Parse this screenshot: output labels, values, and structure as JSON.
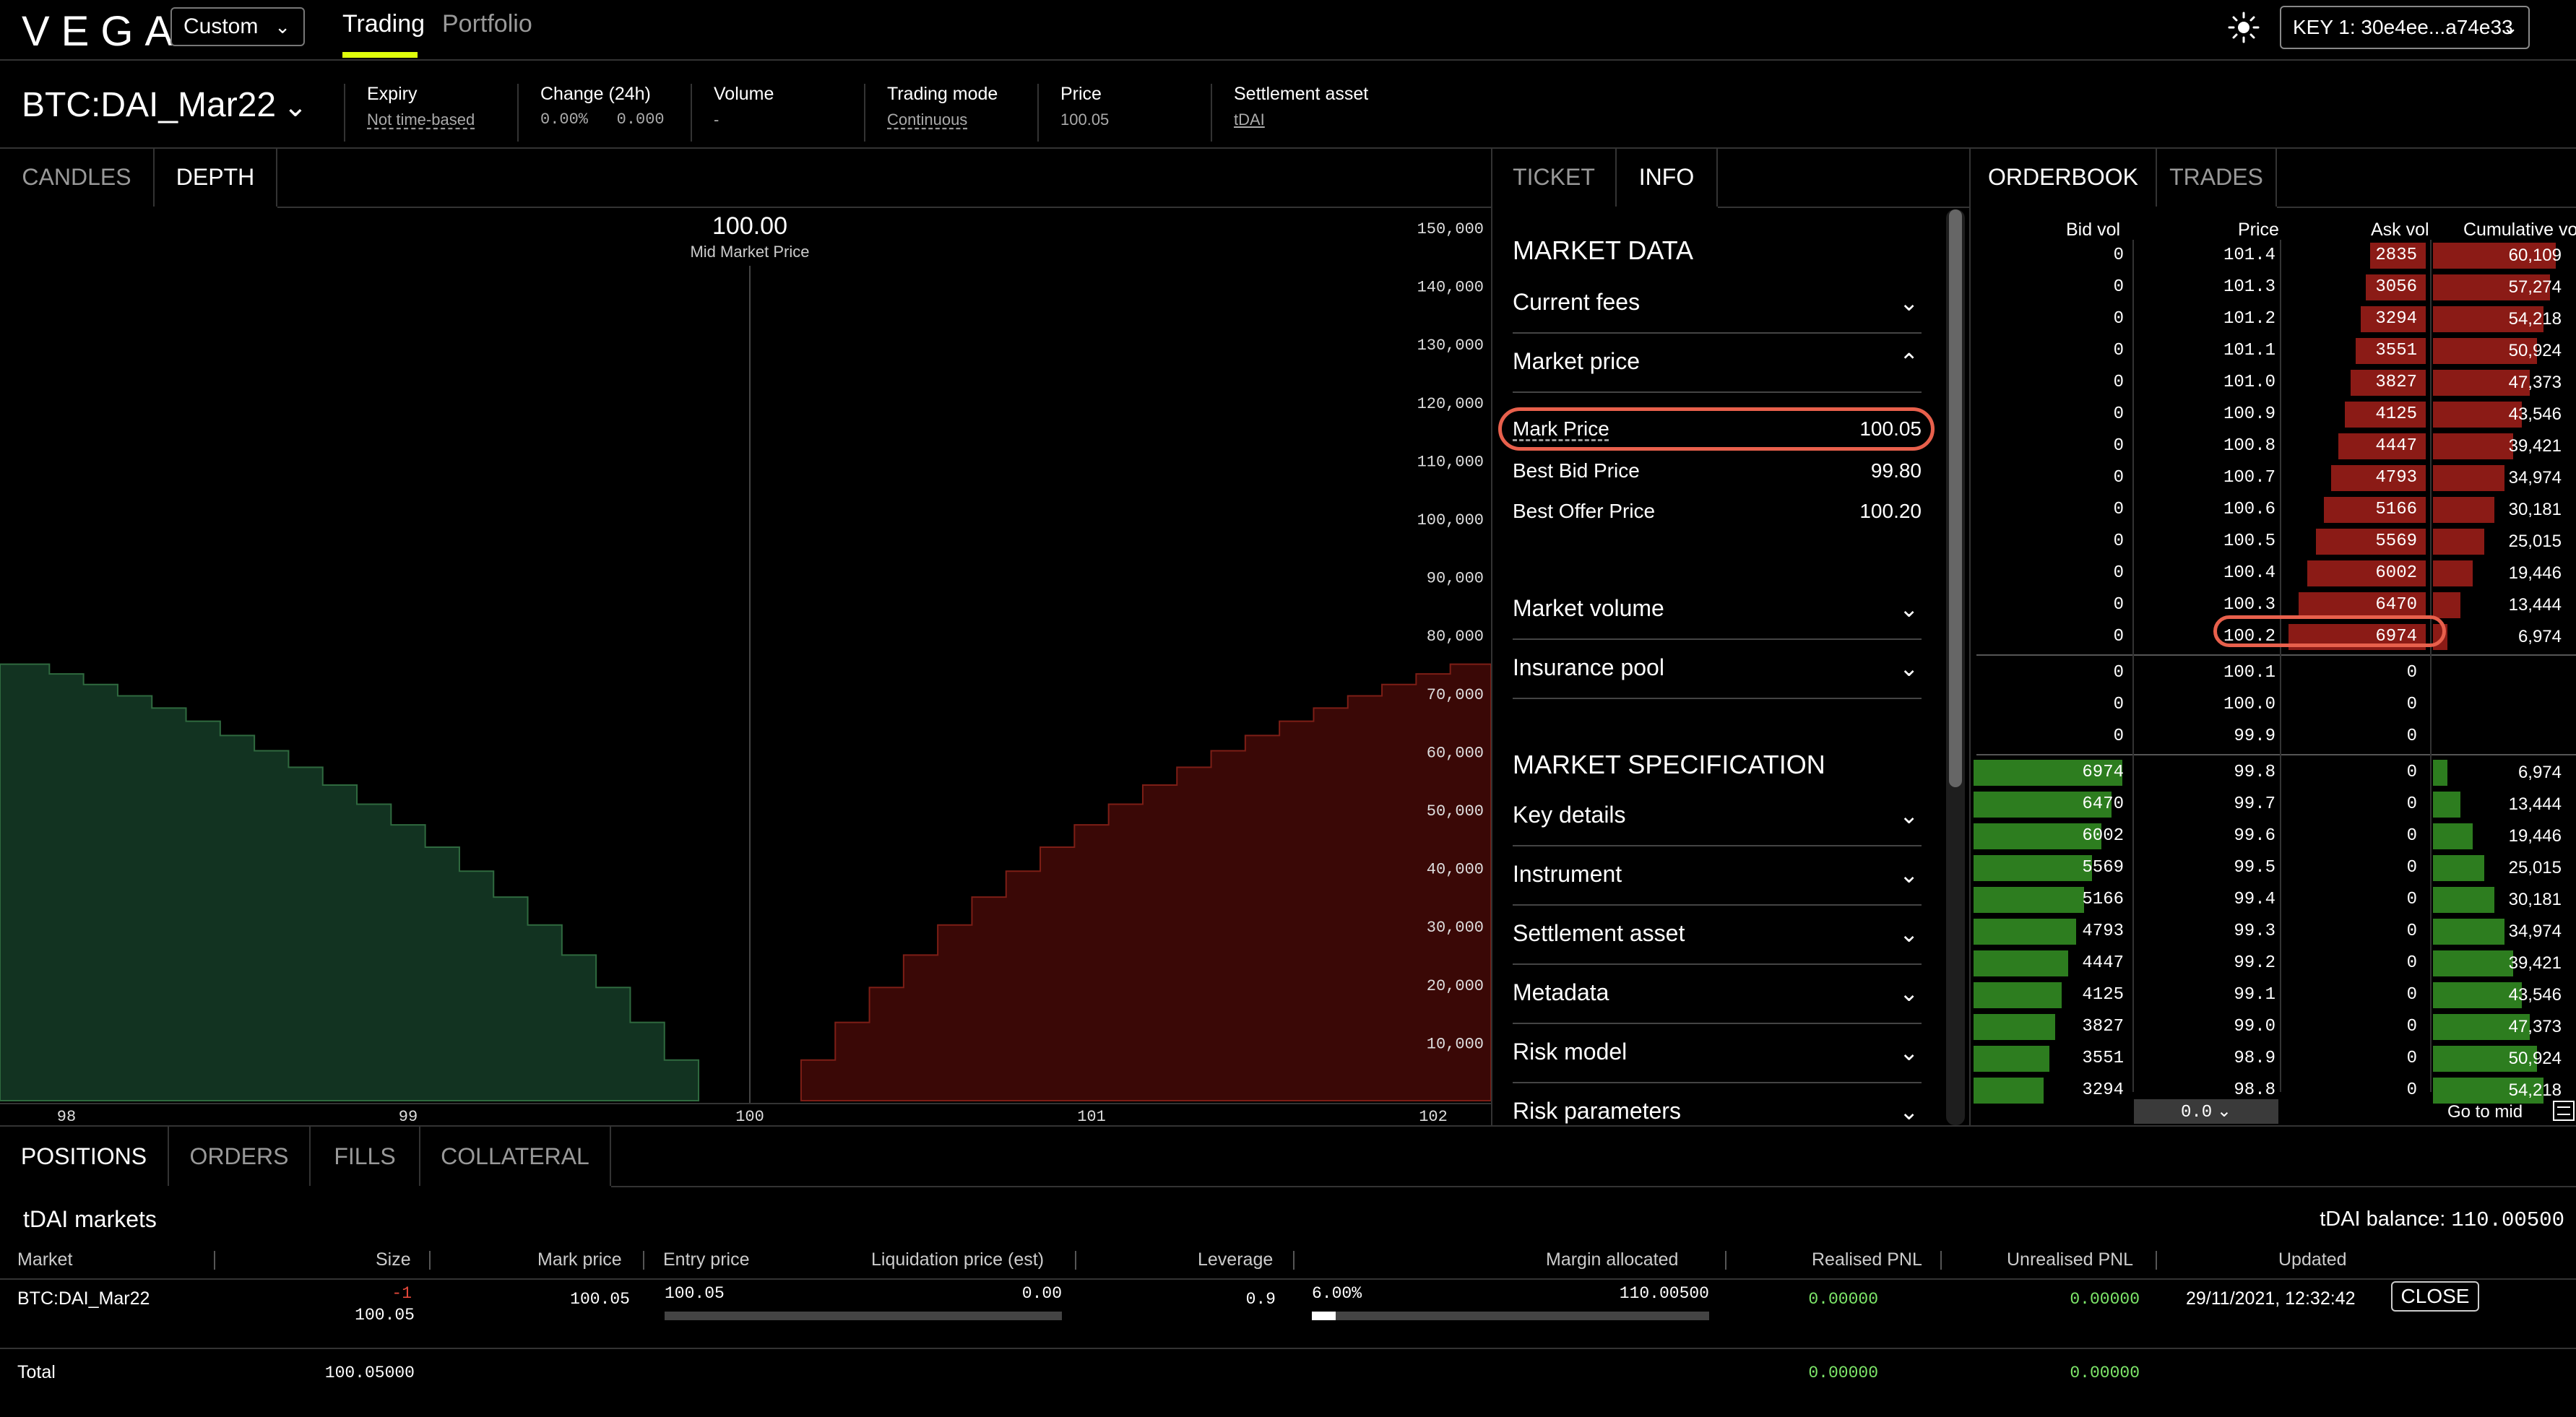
{
  "app": {
    "logo": "VEGA",
    "market_select": "Custom",
    "nav": [
      "Trading",
      "Portfolio"
    ],
    "key_label": "KEY 1: 30e4ee...a74e33",
    "accent_color": "#dfff0b"
  },
  "market_header": {
    "title": "BTC:DAI_Mar22",
    "stats": [
      {
        "label": "Expiry",
        "value": "Not time-based"
      },
      {
        "label": "Change (24h)",
        "value": "0.00%   0.000"
      },
      {
        "label": "Volume",
        "value": "-"
      },
      {
        "label": "Trading mode",
        "value": "Continuous"
      },
      {
        "label": "Price",
        "value": "100.05"
      },
      {
        "label": "Settlement asset",
        "value": "tDAI"
      }
    ]
  },
  "chart_panel": {
    "tabs": [
      "CANDLES",
      "DEPTH"
    ],
    "active_tab": "DEPTH"
  },
  "chart_data": {
    "type": "area",
    "mid_price": "100.00",
    "mid_label": "Mid Market Price",
    "x_ticks": [
      "98",
      "99",
      "100",
      "101",
      "102"
    ],
    "y_ticks": [
      "150,000",
      "140,000",
      "130,000",
      "120,000",
      "110,000",
      "100,000",
      "90,000",
      "80,000",
      "70,000",
      "60,000",
      "50,000",
      "40,000",
      "30,000",
      "20,000",
      "10,000"
    ],
    "xlim": [
      97.8,
      102.2
    ],
    "ylim": [
      0,
      150000
    ],
    "bids": [
      {
        "price": 99.8,
        "cum": 6974
      },
      {
        "price": 99.7,
        "cum": 13444
      },
      {
        "price": 99.6,
        "cum": 19446
      },
      {
        "price": 99.5,
        "cum": 25015
      },
      {
        "price": 99.4,
        "cum": 30181
      },
      {
        "price": 99.3,
        "cum": 34974
      },
      {
        "price": 99.2,
        "cum": 39421
      },
      {
        "price": 99.1,
        "cum": 43546
      },
      {
        "price": 99.0,
        "cum": 47373
      },
      {
        "price": 98.9,
        "cum": 50924
      },
      {
        "price": 98.8,
        "cum": 54218
      },
      {
        "price": 98.7,
        "cum": 57274
      },
      {
        "price": 98.6,
        "cum": 60109
      },
      {
        "price": 98.5,
        "cum": 62740
      },
      {
        "price": 98.4,
        "cum": 65180
      },
      {
        "price": 98.3,
        "cum": 67444
      },
      {
        "price": 98.2,
        "cum": 69545
      },
      {
        "price": 98.1,
        "cum": 71494
      },
      {
        "price": 98.0,
        "cum": 73302
      },
      {
        "price": 97.9,
        "cum": 74980
      }
    ],
    "asks": [
      {
        "price": 100.2,
        "cum": 6974
      },
      {
        "price": 100.3,
        "cum": 13444
      },
      {
        "price": 100.4,
        "cum": 19446
      },
      {
        "price": 100.5,
        "cum": 25015
      },
      {
        "price": 100.6,
        "cum": 30181
      },
      {
        "price": 100.7,
        "cum": 34974
      },
      {
        "price": 100.8,
        "cum": 39421
      },
      {
        "price": 100.9,
        "cum": 43546
      },
      {
        "price": 101.0,
        "cum": 47373
      },
      {
        "price": 101.1,
        "cum": 50924
      },
      {
        "price": 101.2,
        "cum": 54218
      },
      {
        "price": 101.3,
        "cum": 57274
      },
      {
        "price": 101.4,
        "cum": 60109
      },
      {
        "price": 101.5,
        "cum": 62740
      },
      {
        "price": 101.6,
        "cum": 65180
      },
      {
        "price": 101.7,
        "cum": 67444
      },
      {
        "price": 101.8,
        "cum": 69545
      },
      {
        "price": 101.9,
        "cum": 71494
      },
      {
        "price": 102.0,
        "cum": 73302
      },
      {
        "price": 102.1,
        "cum": 74980
      }
    ],
    "bid_color": "#123321",
    "ask_color": "#3a0806"
  },
  "info_panel": {
    "tabs": [
      "TICKET",
      "INFO"
    ],
    "active_tab": "INFO",
    "market_data_title": "MARKET DATA",
    "current_fees": "Current fees",
    "market_price": "Market price",
    "mark_price_label": "Mark Price",
    "mark_price_value": "100.05",
    "best_bid_label": "Best Bid Price",
    "best_bid_value": "99.80",
    "best_offer_label": "Best Offer Price",
    "best_offer_value": "100.20",
    "market_volume": "Market volume",
    "insurance_pool": "Insurance pool",
    "spec_title": "MARKET SPECIFICATION",
    "spec_items": [
      "Key details",
      "Instrument",
      "Settlement asset",
      "Metadata",
      "Risk model",
      "Risk parameters"
    ],
    "highlight_color": "#e8604c"
  },
  "orderbook": {
    "tabs": [
      "ORDERBOOK",
      "TRADES"
    ],
    "active_tab": "ORDERBOOK",
    "headers": [
      "Bid vol",
      "Price",
      "Ask vol",
      "Cumulative vol"
    ],
    "asks": [
      {
        "bid": "0",
        "price": "101.4",
        "ask": "2835",
        "cum": "60,109",
        "cumn": 60109
      },
      {
        "bid": "0",
        "price": "101.3",
        "ask": "3056",
        "cum": "57,274",
        "cumn": 57274
      },
      {
        "bid": "0",
        "price": "101.2",
        "ask": "3294",
        "cum": "54,218",
        "cumn": 54218
      },
      {
        "bid": "0",
        "price": "101.1",
        "ask": "3551",
        "cum": "50,924",
        "cumn": 50924
      },
      {
        "bid": "0",
        "price": "101.0",
        "ask": "3827",
        "cum": "47,373",
        "cumn": 47373
      },
      {
        "bid": "0",
        "price": "100.9",
        "ask": "4125",
        "cum": "43,546",
        "cumn": 43546
      },
      {
        "bid": "0",
        "price": "100.8",
        "ask": "4447",
        "cum": "39,421",
        "cumn": 39421
      },
      {
        "bid": "0",
        "price": "100.7",
        "ask": "4793",
        "cum": "34,974",
        "cumn": 34974
      },
      {
        "bid": "0",
        "price": "100.6",
        "ask": "5166",
        "cum": "30,181",
        "cumn": 30181
      },
      {
        "bid": "0",
        "price": "100.5",
        "ask": "5569",
        "cum": "25,015",
        "cumn": 25015
      },
      {
        "bid": "0",
        "price": "100.4",
        "ask": "6002",
        "cum": "19,446",
        "cumn": 19446
      },
      {
        "bid": "0",
        "price": "100.3",
        "ask": "6470",
        "cum": "13,444",
        "cumn": 13444
      },
      {
        "bid": "0",
        "price": "100.2",
        "ask": "6974",
        "cum": "6,974",
        "cumn": 6974
      }
    ],
    "mids": [
      {
        "bid": "0",
        "price": "100.1",
        "ask": "0"
      },
      {
        "bid": "0",
        "price": "100.0",
        "ask": "0"
      },
      {
        "bid": "0",
        "price": "99.9",
        "ask": "0"
      }
    ],
    "bids": [
      {
        "bid": "6974",
        "price": "99.8",
        "ask": "0",
        "cum": "6,974",
        "cumn": 6974
      },
      {
        "bid": "6470",
        "price": "99.7",
        "ask": "0",
        "cum": "13,444",
        "cumn": 13444
      },
      {
        "bid": "6002",
        "price": "99.6",
        "ask": "0",
        "cum": "19,446",
        "cumn": 19446
      },
      {
        "bid": "5569",
        "price": "99.5",
        "ask": "0",
        "cum": "25,015",
        "cumn": 25015
      },
      {
        "bid": "5166",
        "price": "99.4",
        "ask": "0",
        "cum": "30,181",
        "cumn": 30181
      },
      {
        "bid": "4793",
        "price": "99.3",
        "ask": "0",
        "cum": "34,974",
        "cumn": 34974
      },
      {
        "bid": "4447",
        "price": "99.2",
        "ask": "0",
        "cum": "39,421",
        "cumn": 39421
      },
      {
        "bid": "4125",
        "price": "99.1",
        "ask": "0",
        "cum": "43,546",
        "cumn": 43546
      },
      {
        "bid": "3827",
        "price": "99.0",
        "ask": "0",
        "cum": "47,373",
        "cumn": 47373
      },
      {
        "bid": "3551",
        "price": "98.9",
        "ask": "0",
        "cum": "50,924",
        "cumn": 50924
      },
      {
        "bid": "3294",
        "price": "98.8",
        "ask": "0",
        "cum": "54,218",
        "cumn": 54218
      }
    ],
    "max_vol": 6974,
    "max_cum": 60109,
    "resolution": "0.0",
    "go_to_mid": "Go to mid",
    "ask_bar_color": "#8b1b16",
    "bid_bar_color": "#2d7d1f"
  },
  "bottom": {
    "tabs": [
      "POSITIONS",
      "ORDERS",
      "FILLS",
      "COLLATERAL"
    ],
    "active_tab": "POSITIONS",
    "section_title": "tDAI markets",
    "balance_label": "tDAI balance:",
    "balance_value": "110.00500",
    "columns": [
      "Market",
      "Size",
      "Mark price",
      "Entry price",
      "Liquidation price (est)",
      "Leverage",
      "Margin allocated",
      "Realised PNL",
      "Unrealised PNL",
      "Updated"
    ],
    "row": {
      "market": "BTC:DAI_Mar22",
      "size": "-1",
      "size_notional": "100.05",
      "mark_price": "100.05",
      "entry_price": "100.05",
      "liquidation_price": "0.00",
      "leverage": "0.9",
      "margin_pct": "6.00%",
      "margin_allocated": "110.00500",
      "margin_fraction": 0.06,
      "realised_pnl": "0.00000",
      "unrealised_pnl": "0.00000",
      "updated": "29/11/2021, 12:32:42",
      "close_label": "CLOSE"
    },
    "total_label": "Total",
    "total_value": "100.05000",
    "total_realised": "0.00000",
    "total_unrealised": "0.00000"
  }
}
